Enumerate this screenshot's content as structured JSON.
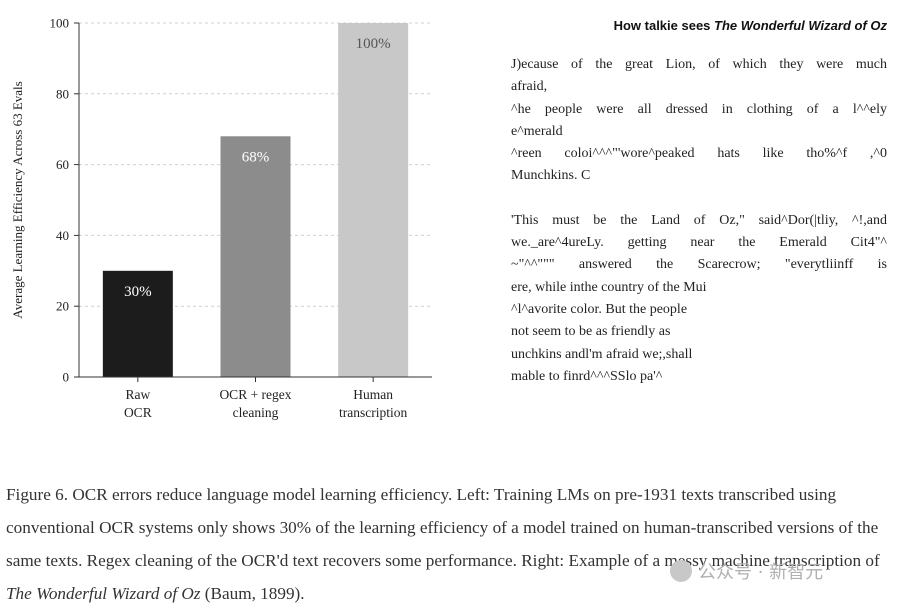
{
  "chart_data": {
    "type": "bar",
    "categories": [
      [
        "Raw",
        "OCR"
      ],
      [
        "OCR + regex",
        "cleaning"
      ],
      [
        "Human",
        "transcription"
      ]
    ],
    "values": [
      30,
      68,
      100
    ],
    "data_labels": [
      "30%",
      "68%",
      "100%"
    ],
    "bar_colors": [
      "#1c1c1c",
      "#8c8c8c",
      "#c8c8c8"
    ],
    "label_colors": [
      "#ffffff",
      "#ffffff",
      "#555555"
    ],
    "ylabel": "Average Learning Efficiency Across 63 Evals",
    "ylim": [
      0,
      100
    ],
    "yticks": [
      0,
      20,
      40,
      60,
      80,
      100
    ],
    "grid": true
  },
  "ocr_panel": {
    "title_prefix": "How talkie sees ",
    "title_book": "The Wonderful Wizard of Oz",
    "lines": [
      {
        "text": "J)ecause of the great Lion, of which they were much",
        "justify": true
      },
      {
        "text": "afraid,",
        "justify": false
      },
      {
        "text": "^he people were all dressed in clothing of a l^^ely",
        "justify": true
      },
      {
        "text": "e^merald",
        "justify": false
      },
      {
        "text": "^reen coloi^^^\"'wore^peaked hats like tho%^f ,^0",
        "justify": true
      },
      {
        "text": "Munchkins. C",
        "justify": false
      },
      {
        "text": "",
        "justify": false
      },
      {
        "text": "'This must be the Land of Oz,\" said^Dor(|tliy, ^!,and",
        "justify": true
      },
      {
        "text": "we._are^4ureLy. getting near the Emerald Cit4\"^",
        "justify": true
      },
      {
        "text": "~\"^^\"\"\" answered the Scarecrow; \"everytliinff is",
        "justify": true
      },
      {
        "text": "ere, while inthe country of the Mui",
        "justify": false
      },
      {
        "text": "^l^avorite color. But the people",
        "justify": false
      },
      {
        "text": "not seem to be as friendly as",
        "justify": false
      },
      {
        "text": "unchkins andl'm afraid we;,shall",
        "justify": false
      },
      {
        "text": "mable to finrd^^^SSlo pa'^",
        "justify": false
      }
    ]
  },
  "caption": {
    "text_main": "Figure 6. OCR errors reduce language model learning efficiency. Left: Training LMs on pre-1931 texts transcribed using conventional OCR systems only shows 30% of the learning efficiency of a model trained on human-transcribed versions of the same texts. Regex cleaning of the OCR'd text recovers some performance. Right: Example of a messy machine transcription of ",
    "book": "The Wonderful Wizard of Oz",
    "text_end": " (Baum, 1899)."
  },
  "watermark": {
    "text": "公众号 · 新智元"
  }
}
